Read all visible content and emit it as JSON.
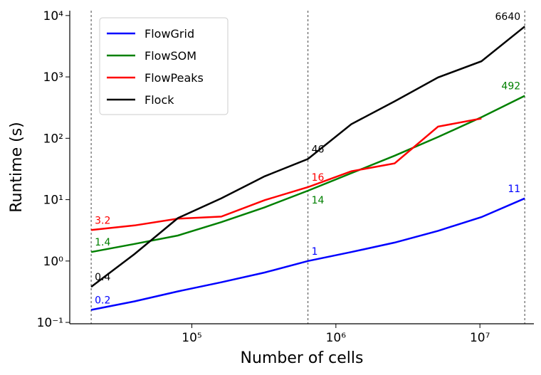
{
  "chart_data": {
    "type": "line",
    "x_label": "Number of cells",
    "y_label": "Runtime (s)",
    "x": [
      20000,
      40000,
      80000,
      160000,
      320000,
      640000,
      1280000,
      2560000,
      5120000,
      10240000,
      20480000
    ],
    "series": [
      {
        "name": "FlowGrid",
        "color": "#0000ff",
        "values": [
          0.16,
          0.22,
          0.32,
          0.45,
          0.65,
          1.0,
          1.4,
          2.0,
          3.1,
          5.2,
          10.5
        ],
        "value_labels": [
          "0.2",
          null,
          null,
          null,
          null,
          "1",
          null,
          null,
          null,
          null,
          "11"
        ]
      },
      {
        "name": "FlowSOM",
        "color": "#008000",
        "values": [
          1.4,
          1.9,
          2.6,
          4.3,
          7.5,
          14,
          27,
          52,
          105,
          220,
          492
        ],
        "value_labels": [
          "1.4",
          null,
          null,
          null,
          null,
          "14",
          null,
          null,
          null,
          null,
          "492"
        ]
      },
      {
        "name": "FlowPeaks",
        "color": "#ff0000",
        "values": [
          3.2,
          3.8,
          4.9,
          5.3,
          9.8,
          16,
          29,
          39,
          155,
          210,
          null
        ],
        "value_labels": [
          "3.2",
          null,
          null,
          null,
          null,
          "16",
          null,
          null,
          null,
          null,
          null
        ]
      },
      {
        "name": "Flock",
        "color": "#000000",
        "values": [
          0.38,
          1.3,
          5.0,
          10.5,
          24,
          46,
          170,
          400,
          980,
          1800,
          6640
        ],
        "value_labels": [
          "0.4",
          null,
          null,
          null,
          null,
          "46",
          null,
          null,
          null,
          null,
          "6640"
        ]
      }
    ],
    "log_x": true,
    "log_y": true,
    "xlim": [
      14200,
      23700000
    ],
    "ylim": [
      0.095,
      12000
    ],
    "xticks": [
      {
        "value": 100000,
        "label": "10⁵"
      },
      {
        "value": 1000000,
        "label": "10⁶"
      },
      {
        "value": 10000000,
        "label": "10⁷"
      }
    ],
    "yticks": [
      {
        "value": 0.1,
        "label": "10⁻¹"
      },
      {
        "value": 1,
        "label": "10⁰"
      },
      {
        "value": 10,
        "label": "10¹"
      },
      {
        "value": 100,
        "label": "10²"
      },
      {
        "value": 1000,
        "label": "10³"
      },
      {
        "value": 10000,
        "label": "10⁴"
      }
    ],
    "vlines": [
      20000,
      640000,
      20480000
    ],
    "legend": "upper left"
  }
}
